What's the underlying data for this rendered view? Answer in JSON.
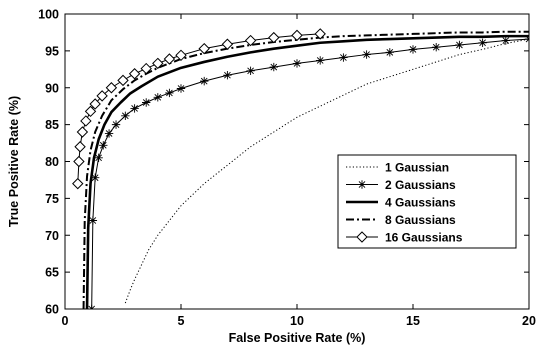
{
  "chart_data": {
    "type": "line",
    "title": "",
    "xlabel": "False Positive Rate (%)",
    "ylabel": "True Positive Rate (%)",
    "xlim": [
      0,
      20
    ],
    "ylim": [
      60,
      100
    ],
    "xticks": [
      0,
      5,
      10,
      15,
      20
    ],
    "yticks": [
      60,
      65,
      70,
      75,
      80,
      85,
      90,
      95,
      100
    ],
    "grid": false,
    "legend_position": "right",
    "series": [
      {
        "name": "1 Gaussian",
        "style": "dotted",
        "marker": "none",
        "x": [
          2.6,
          2.8,
          3.0,
          3.3,
          3.6,
          4.0,
          4.5,
          5.0,
          5.5,
          6.0,
          7.0,
          8.0,
          9.0,
          10.0,
          11.0,
          12.0,
          13.0,
          14.0,
          15.0,
          16.0,
          17.0,
          18.0,
          19.0,
          20.0
        ],
        "y": [
          60.8,
          62.5,
          64.0,
          66.0,
          68.0,
          70.0,
          72.0,
          74.0,
          75.5,
          77.0,
          79.5,
          82.0,
          84.0,
          86.0,
          87.5,
          89.0,
          90.5,
          91.5,
          92.5,
          93.5,
          94.5,
          95.2,
          96.0,
          96.6
        ]
      },
      {
        "name": "2 Gaussians",
        "style": "solid-thin",
        "marker": "asterisk",
        "x": [
          1.15,
          1.2,
          1.3,
          1.45,
          1.65,
          1.9,
          2.2,
          2.6,
          3.0,
          3.5,
          4.0,
          4.5,
          5.0,
          6.0,
          7.0,
          8.0,
          9.0,
          10.0,
          11.0,
          12.0,
          13.0,
          14.0,
          15.0,
          16.0,
          17.0,
          18.0,
          19.0,
          20.0
        ],
        "y": [
          60.0,
          72.0,
          77.8,
          80.5,
          82.2,
          83.8,
          85.0,
          86.2,
          87.2,
          88.0,
          88.7,
          89.3,
          89.9,
          90.9,
          91.7,
          92.3,
          92.8,
          93.3,
          93.7,
          94.1,
          94.5,
          94.8,
          95.2,
          95.5,
          95.8,
          96.1,
          96.4,
          96.6
        ]
      },
      {
        "name": "4 Gaussians",
        "style": "solid-thick",
        "marker": "none",
        "x": [
          0.95,
          1.0,
          1.1,
          1.25,
          1.45,
          1.7,
          2.0,
          2.4,
          2.8,
          3.3,
          4.0,
          5.0,
          6.0,
          7.0,
          8.0,
          9.0,
          10.0,
          11.0,
          12.0,
          13.0,
          14.0,
          15.0,
          16.0,
          17.0,
          18.0,
          19.0,
          20.0
        ],
        "y": [
          60.0,
          71.0,
          77.0,
          80.5,
          83.0,
          85.0,
          86.7,
          88.0,
          89.2,
          90.2,
          91.5,
          92.7,
          93.5,
          94.2,
          94.8,
          95.3,
          95.7,
          96.1,
          96.3,
          96.5,
          96.6,
          96.7,
          96.8,
          96.9,
          96.9,
          97.0,
          97.0
        ]
      },
      {
        "name": "8 Gaussians",
        "style": "dash-dot",
        "marker": "none",
        "x": [
          0.8,
          0.85,
          0.95,
          1.1,
          1.3,
          1.6,
          2.0,
          2.5,
          3.0,
          3.5,
          4.0,
          5.0,
          6.0,
          7.0,
          8.0,
          9.0,
          10.0,
          11.0,
          12.0,
          13.0,
          14.0,
          15.0,
          16.0,
          17.0,
          18.0,
          19.0,
          20.0
        ],
        "y": [
          60.0,
          72.0,
          78.0,
          81.5,
          84.0,
          86.2,
          88.3,
          89.8,
          91.0,
          91.9,
          92.7,
          93.9,
          94.7,
          95.3,
          95.8,
          96.2,
          96.5,
          96.8,
          97.0,
          97.1,
          97.2,
          97.3,
          97.4,
          97.5,
          97.5,
          97.6,
          97.6
        ]
      },
      {
        "name": "16 Gaussians",
        "style": "solid-thin",
        "marker": "diamond",
        "x": [
          0.55,
          0.6,
          0.65,
          0.75,
          0.9,
          1.1,
          1.3,
          1.6,
          2.0,
          2.5,
          3.0,
          3.5,
          4.0,
          4.5,
          5.0,
          6.0,
          7.0,
          8.0,
          9.0,
          10.0,
          11.0
        ],
        "y": [
          77.0,
          80.0,
          82.0,
          84.0,
          85.5,
          86.8,
          87.8,
          88.9,
          90.0,
          91.0,
          91.9,
          92.6,
          93.3,
          93.9,
          94.4,
          95.3,
          95.9,
          96.4,
          96.8,
          97.1,
          97.3
        ]
      }
    ]
  }
}
